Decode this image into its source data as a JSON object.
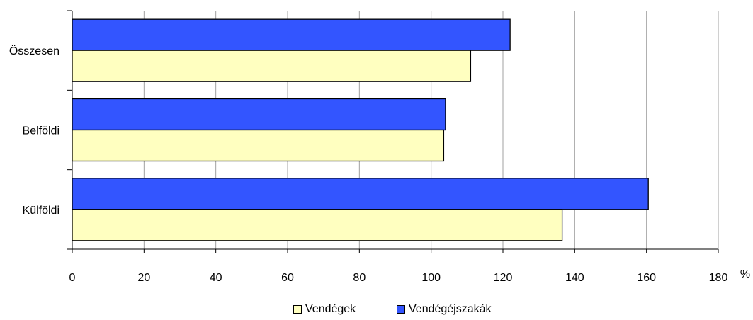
{
  "chart_data": {
    "type": "bar",
    "orientation": "horizontal",
    "categories": [
      "Összesen",
      "Belföldi",
      "Külföldi"
    ],
    "series": [
      {
        "name": "Vendégéjszakák",
        "values": [
          122,
          104,
          160.5
        ],
        "color": "#3355FF"
      },
      {
        "name": "Vendégek",
        "values": [
          111,
          103.5,
          136.5
        ],
        "color": "#FFFFC0"
      }
    ],
    "xlim": [
      0,
      180
    ],
    "xticks": [
      "0",
      "20",
      "40",
      "60",
      "80",
      "100",
      "120",
      "140",
      "160",
      "180"
    ],
    "xunit": "%",
    "grid": "vertical",
    "legend_position": "bottom",
    "legend": [
      "Vendégek",
      "Vendégéjszakák"
    ]
  }
}
